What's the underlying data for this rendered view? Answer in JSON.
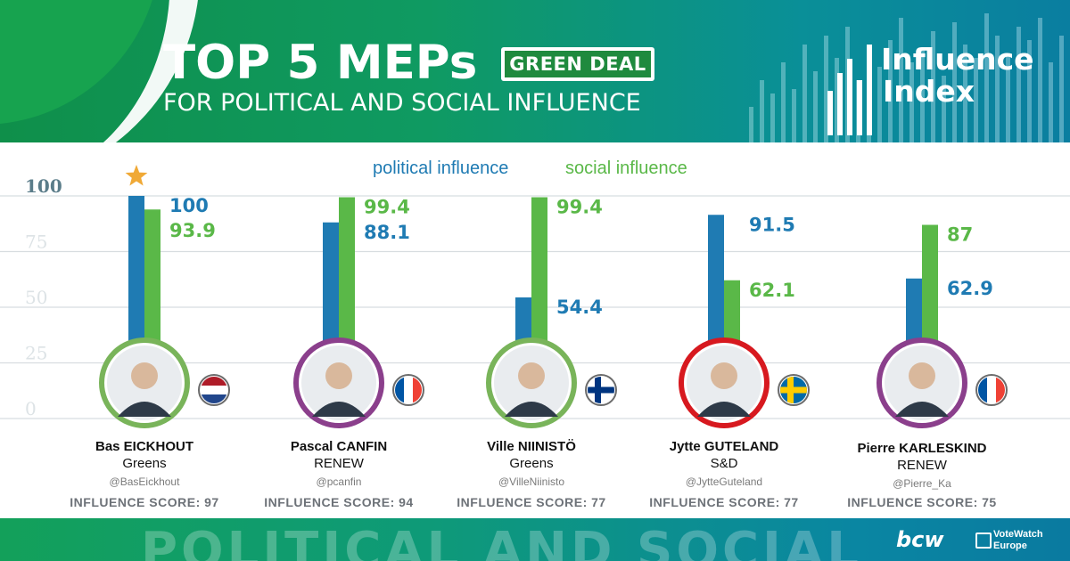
{
  "header": {
    "title": "TOP 5 MEPs",
    "badge": "GREEN DEAL",
    "subtitle": "FOR POLITICAL AND SOCIAL INFLUENCE",
    "logo_line1": "Influence",
    "logo_line2": "Index"
  },
  "legend": {
    "political": "political influence",
    "social": "social influence"
  },
  "colors": {
    "political": "#1f7bb3",
    "social": "#5ab848",
    "score": "#6d7278",
    "axis": "#d8dde0",
    "greens_ring": "#79b45a",
    "renew_ring": "#8b3f8c",
    "sd_ring": "#d7191f",
    "star": "#f0a936"
  },
  "chart_data": {
    "type": "bar",
    "title": "TOP 5 MEPs GREEN DEAL FOR POLITICAL AND SOCIAL INFLUENCE",
    "ylim": [
      0,
      100
    ],
    "yticks": [
      "0",
      "25",
      "50",
      "75",
      "100"
    ],
    "categories": [
      "Bas EICKHOUT",
      "Pascal CANFIN",
      "Ville NIINISTÖ",
      "Jytte GUTELAND",
      "Pierre KARLESKIND"
    ],
    "series": [
      {
        "name": "political influence",
        "values": [
          100,
          88.1,
          54.4,
          91.5,
          62.9
        ]
      },
      {
        "name": "social influence",
        "values": [
          93.9,
          99.4,
          99.4,
          62.1,
          87
        ]
      }
    ],
    "labels": {
      "political": [
        "100",
        "88.1",
        "54.4",
        "91.5",
        "62.9"
      ],
      "social": [
        "93.9",
        "99.4",
        "99.4",
        "62.1",
        "87"
      ]
    },
    "top_marker": "star"
  },
  "meps": [
    {
      "name": "Bas EICKHOUT",
      "group": "Greens",
      "handle": "@BasEickhout",
      "score": "INFLUENCE SCORE: 97",
      "country": "Netherlands",
      "ring": "greens"
    },
    {
      "name": "Pascal CANFIN",
      "group": "RENEW",
      "handle": "@pcanfin",
      "score": "INFLUENCE SCORE: 94",
      "country": "France",
      "ring": "renew"
    },
    {
      "name": "Ville NIINISTÖ",
      "group": "Greens",
      "handle": "@VilleNiinisto",
      "score": "INFLUENCE SCORE: 77",
      "country": "Finland",
      "ring": "greens"
    },
    {
      "name": "Jytte GUTELAND",
      "group": "S&D",
      "handle": "@JytteGuteland",
      "score": "INFLUENCE SCORE: 77",
      "country": "Sweden",
      "ring": "sd"
    },
    {
      "name": "Pierre KARLESKIND",
      "group": "RENEW",
      "handle": "@Pierre_Ka",
      "score": "INFLUENCE SCORE: 75",
      "country": "France",
      "ring": "renew"
    }
  ],
  "footer": {
    "banner_text": "POLITICAL AND SOCIAL",
    "logo_bcw": "bcw",
    "logo_votewatch_line1": "VoteWatch",
    "logo_votewatch_line2": "Europe"
  }
}
